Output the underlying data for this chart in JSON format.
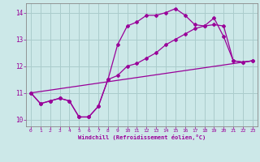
{
  "xlabel": "Windchill (Refroidissement éolien,°C)",
  "bg_color": "#cce8e8",
  "line_color": "#990099",
  "grid_color": "#aacccc",
  "xlim": [
    -0.5,
    23.5
  ],
  "ylim": [
    9.75,
    14.35
  ],
  "xticks": [
    0,
    1,
    2,
    3,
    4,
    5,
    6,
    7,
    8,
    9,
    10,
    11,
    12,
    13,
    14,
    15,
    16,
    17,
    18,
    19,
    20,
    21,
    22,
    23
  ],
  "yticks": [
    10,
    11,
    12,
    13,
    14
  ],
  "line1_x": [
    0,
    1,
    2,
    3,
    4,
    5,
    6,
    7,
    8,
    9,
    10,
    11,
    12,
    13,
    14,
    15,
    16,
    17,
    18,
    19,
    20,
    21,
    22,
    23
  ],
  "line1_y": [
    11.0,
    10.6,
    10.7,
    10.8,
    10.7,
    10.1,
    10.1,
    10.5,
    11.5,
    12.8,
    13.5,
    13.65,
    13.9,
    13.9,
    14.0,
    14.15,
    13.9,
    13.55,
    13.5,
    13.8,
    13.1,
    12.2,
    12.15,
    12.2
  ],
  "line2_x": [
    0,
    1,
    2,
    3,
    4,
    5,
    6,
    7,
    8,
    9,
    10,
    11,
    12,
    13,
    14,
    15,
    16,
    17,
    18,
    19,
    20,
    21,
    22,
    23
  ],
  "line2_y": [
    11.0,
    10.6,
    10.7,
    10.8,
    10.7,
    10.1,
    10.1,
    10.5,
    11.5,
    11.65,
    12.0,
    12.1,
    12.3,
    12.5,
    12.8,
    13.0,
    13.2,
    13.4,
    13.5,
    13.55,
    13.5,
    12.2,
    12.15,
    12.2
  ],
  "line3_x": [
    0,
    23
  ],
  "line3_y": [
    11.0,
    12.2
  ]
}
